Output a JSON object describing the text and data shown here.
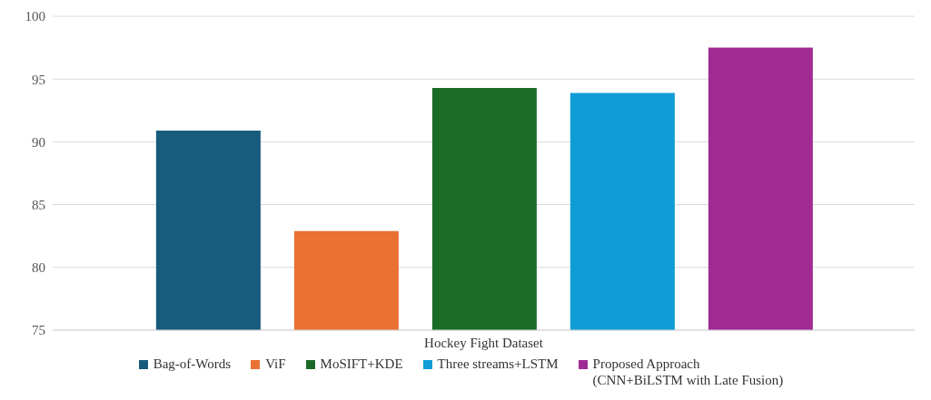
{
  "chart_data": {
    "type": "bar",
    "categories": [
      "Hockey Fight Dataset"
    ],
    "series": [
      {
        "name": "Bag-of-Words",
        "color": "#175b7d",
        "values": [
          90.9
        ]
      },
      {
        "name": "ViF",
        "color": "#e97132",
        "values": [
          82.9
        ]
      },
      {
        "name": "MoSIFT+KDE",
        "color": "#1b6b27",
        "values": [
          94.3
        ]
      },
      {
        "name": "Three streams+LSTM",
        "color": "#109dd6",
        "values": [
          93.9
        ]
      },
      {
        "name": "Proposed Approach\n(CNN+BiLSTM with Late Fusion)",
        "color": "#a02b93",
        "values": [
          97.5
        ]
      }
    ],
    "ylim": [
      75,
      100
    ],
    "yticks": [
      75,
      80,
      85,
      90,
      95,
      100
    ],
    "grid": "y",
    "legend": "bottom"
  }
}
